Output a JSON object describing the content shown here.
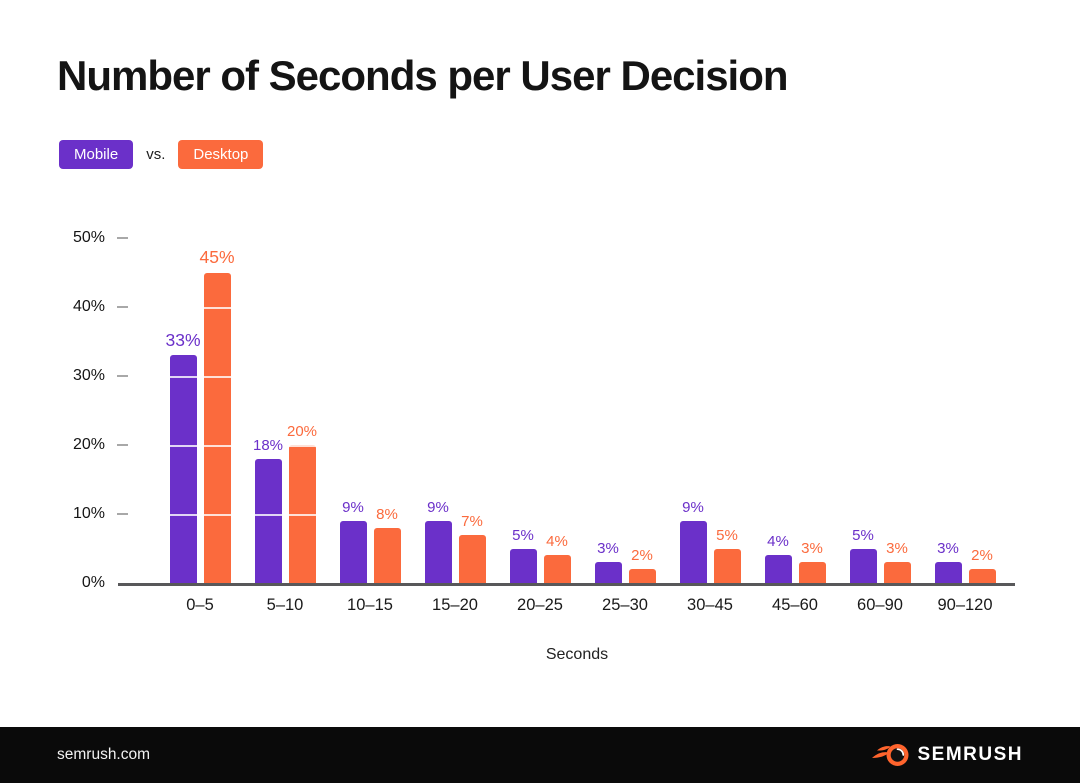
{
  "title": "Number of Seconds per User Decision",
  "legend": {
    "mobile_label": "Mobile",
    "vs_label": "vs.",
    "desktop_label": "Desktop"
  },
  "colors": {
    "mobile_purple": "#6B30C9",
    "desktop_orange": "#FB6A3D",
    "title_text": "#141414",
    "axis_line": "#58585A",
    "tick_dash": "#A8A8A8",
    "footer_background": "#0A0A0A",
    "grid_overlay": "rgba(255,255,255,0.8)"
  },
  "chart_data": {
    "type": "bar",
    "categories": [
      "0–5",
      "5–10",
      "10–15",
      "15–20",
      "20–25",
      "25–30",
      "30–45",
      "45–60",
      "60–90",
      "90–120"
    ],
    "series": [
      {
        "name": "Mobile",
        "color": "#6B30C9",
        "values": [
          33,
          18,
          9,
          9,
          5,
          3,
          9,
          4,
          5,
          3
        ]
      },
      {
        "name": "Desktop",
        "color": "#FB6A3D",
        "values": [
          45,
          20,
          8,
          7,
          4,
          2,
          5,
          3,
          3,
          2
        ]
      }
    ],
    "value_labels": {
      "Mobile": [
        "33%",
        "18%",
        "9%",
        "9%",
        "5%",
        "3%",
        "9%",
        "4%",
        "5%",
        "3%"
      ],
      "Desktop": [
        "45%",
        "20%",
        "8%",
        "7%",
        "4%",
        "2%",
        "5%",
        "3%",
        "3%",
        "2%"
      ]
    },
    "title": "Number of Seconds per User Decision",
    "xlabel": "Seconds",
    "ylabel": "",
    "y_ticks": [
      "50%",
      "40%",
      "30%",
      "20%",
      "10%",
      "0%"
    ],
    "ylim": [
      0,
      50
    ],
    "grid": "white line segments over bars at every 10%",
    "legend_position": "top-left"
  },
  "footer": {
    "site": "semrush.com",
    "brand": "SEMRUSH",
    "logo": "semrush-flame-icon"
  }
}
